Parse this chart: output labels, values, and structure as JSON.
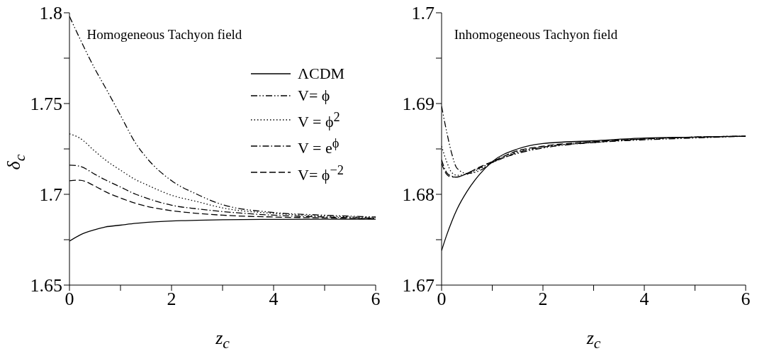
{
  "chart_data": [
    {
      "type": "line",
      "title": "Homogeneous Tachyon field",
      "xlabel": "z$_{c}$",
      "ylabel": "δ$_{c}$",
      "legend": "top right",
      "x": [
        0,
        0.2,
        0.5,
        0.7,
        1,
        1.3,
        1.5,
        2,
        2.5,
        3,
        4,
        5,
        6
      ],
      "xlim": [
        0,
        6
      ],
      "xticks": [
        0,
        {
          "value": 1,
          "label": null
        },
        2,
        {
          "value": 3,
          "label": null
        },
        4,
        {
          "value": 5,
          "label": null
        },
        6
      ],
      "ylim": [
        1.65,
        1.8
      ],
      "yticks": [
        1.65,
        {
          "value": 1.675,
          "label": null
        },
        1.7,
        {
          "value": 1.725,
          "label": null
        },
        1.75,
        {
          "value": 1.775,
          "label": null
        },
        1.8
      ],
      "series": [
        {
          "name": "ΛCDM",
          "color": "#000000",
          "line_style": "solid",
          "values": [
            1.6742,
            1.6775,
            1.6805,
            1.682,
            1.683,
            1.684,
            1.6845,
            1.6853,
            1.6857,
            1.686,
            1.6862,
            1.6863,
            1.6863
          ]
        },
        {
          "name": "V= ϕ",
          "color": "#000000",
          "line_style": "dashdotdot",
          "values": [
            1.798,
            1.786,
            1.769,
            1.759,
            1.7435,
            1.728,
            1.7205,
            1.7075,
            1.7,
            1.6943,
            1.69,
            1.6885,
            1.6875
          ]
        },
        {
          "name": "V = ϕ$^{2}$",
          "color": "#000000",
          "line_style": "dotted",
          "values": [
            1.7333,
            1.731,
            1.7237,
            1.719,
            1.7133,
            1.708,
            1.7054,
            1.6995,
            1.696,
            1.6925,
            1.6895,
            1.688,
            1.6873
          ]
        },
        {
          "name": "V = e$^{ϕ}$",
          "color": "#000000",
          "line_style": "dashdot",
          "values": [
            1.7161,
            1.7155,
            1.711,
            1.708,
            1.704,
            1.7,
            1.698,
            1.694,
            1.692,
            1.6905,
            1.6885,
            1.6875,
            1.6868
          ]
        },
        {
          "name": "V= ϕ$^{−2}$",
          "color": "#000000",
          "line_style": "dashed",
          "values": [
            1.7075,
            1.7078,
            1.7045,
            1.7015,
            1.698,
            1.695,
            1.6935,
            1.691,
            1.6895,
            1.6885,
            1.6875,
            1.687,
            1.6866
          ]
        }
      ]
    },
    {
      "type": "line",
      "title": "Inhomogeneous Tachyon field",
      "xlabel": "z$_{c}$",
      "x": [
        0,
        0.1,
        0.2,
        0.3,
        0.5,
        0.75,
        1,
        1.5,
        2,
        3,
        4,
        5,
        6
      ],
      "xlim": [
        0,
        6
      ],
      "xticks": [
        0,
        {
          "value": 1,
          "label": null
        },
        2,
        {
          "value": 3,
          "label": null
        },
        4,
        {
          "value": 5,
          "label": null
        },
        6
      ],
      "ylim": [
        1.67,
        1.7
      ],
      "yticks": [
        1.67,
        {
          "value": 1.675,
          "label": null
        },
        1.68,
        {
          "value": 1.685,
          "label": null
        },
        1.69,
        {
          "value": 1.695,
          "label": null
        },
        1.7
      ],
      "series": [
        {
          "color": "#000000",
          "line_style": "solid",
          "values": [
            1.6738,
            1.6755,
            1.677,
            1.6783,
            1.6803,
            1.6822,
            1.6836,
            1.685,
            1.6856,
            1.6859,
            1.6862,
            1.6863,
            1.6864
          ]
        },
        {
          "color": "#000000",
          "line_style": "dashdotdot",
          "values": [
            1.6897,
            1.6869,
            1.6845,
            1.6829,
            1.6823,
            1.6826,
            1.6835,
            1.6845,
            1.6851,
            1.6857,
            1.686,
            1.6862,
            1.6864
          ]
        },
        {
          "color": "#000000",
          "line_style": "dotted",
          "values": [
            1.6853,
            1.6836,
            1.6824,
            1.6821,
            1.6822,
            1.6828,
            1.6836,
            1.6847,
            1.6852,
            1.6858,
            1.6861,
            1.6863,
            1.6864
          ]
        },
        {
          "color": "#000000",
          "line_style": "dashdot",
          "values": [
            1.6838,
            1.6824,
            1.682,
            1.6819,
            1.6823,
            1.6829,
            1.6835,
            1.6846,
            1.6852,
            1.6857,
            1.6861,
            1.6863,
            1.6864
          ]
        },
        {
          "color": "#000000",
          "line_style": "dashed",
          "values": [
            1.6834,
            1.6822,
            1.6819,
            1.6819,
            1.6823,
            1.683,
            1.6836,
            1.6848,
            1.6853,
            1.6858,
            1.6861,
            1.6863,
            1.6864
          ]
        }
      ]
    }
  ]
}
